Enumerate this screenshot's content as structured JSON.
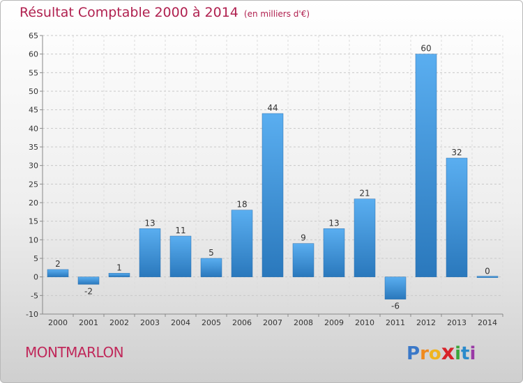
{
  "header": {
    "title": "Résultat Comptable 2000 à 2014",
    "subtitle": "(en milliers d'€)"
  },
  "footer": {
    "commune": "MONTMARLON",
    "brand": "Proxiti",
    "brand_letters": [
      {
        "char": "P",
        "color": "#3a78c8"
      },
      {
        "char": "r",
        "color": "#f08a1e"
      },
      {
        "char": "o",
        "color": "#f0b41e"
      },
      {
        "char": "x",
        "color": "#d8232a"
      },
      {
        "char": "i",
        "color": "#3aa63a"
      },
      {
        "char": "t",
        "color": "#2a8acb"
      },
      {
        "char": "i",
        "color": "#9a3aa6"
      }
    ]
  },
  "chart_data": {
    "type": "bar",
    "title": "Résultat Comptable 2000 à 2014",
    "subtitle": "(en milliers d'€)",
    "categories": [
      "2000",
      "2001",
      "2002",
      "2003",
      "2004",
      "2005",
      "2006",
      "2007",
      "2008",
      "2009",
      "2010",
      "2011",
      "2012",
      "2013",
      "2014"
    ],
    "values": [
      2,
      -2,
      1,
      13,
      11,
      5,
      18,
      44,
      9,
      13,
      21,
      -6,
      60,
      32,
      0
    ],
    "ylim": [
      -10,
      65
    ],
    "yticks": [
      -10,
      -5,
      0,
      5,
      10,
      15,
      20,
      25,
      30,
      35,
      40,
      45,
      50,
      55,
      60,
      65
    ],
    "grid": true,
    "bar_color": "#4a9ee0",
    "bar_color_dark": "#2a78bc"
  }
}
